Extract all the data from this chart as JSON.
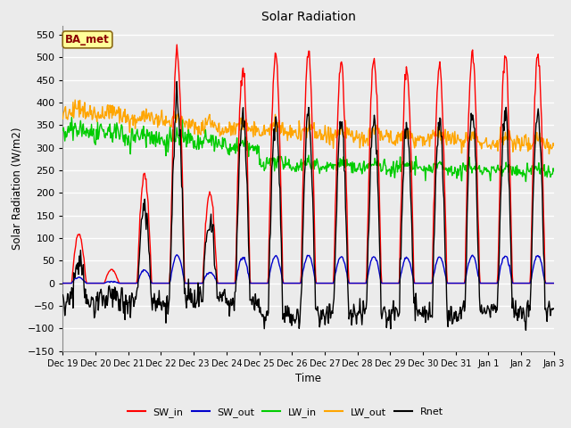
{
  "title": "Solar Radiation",
  "xlabel": "Time",
  "ylabel": "Solar Radiation (W/m2)",
  "ylim": [
    -150,
    570
  ],
  "yticks": [
    -150,
    -100,
    -50,
    0,
    50,
    100,
    150,
    200,
    250,
    300,
    350,
    400,
    450,
    500,
    550
  ],
  "annotation_text": "BA_met",
  "annotation_color": "#8B0000",
  "annotation_bg": "#FFFF99",
  "series_colors": {
    "SW_in": "#FF0000",
    "SW_out": "#0000CC",
    "LW_in": "#00CC00",
    "LW_out": "#FFA500",
    "Rnet": "#000000"
  },
  "line_width": 1.0,
  "bg_color": "#E8E8E8",
  "plot_bg": "#EBEBEB",
  "n_days": 15,
  "tick_labels": [
    "Dec 19",
    "Dec 20",
    "Dec 21",
    "Dec 22",
    "Dec 23",
    "Dec 24",
    "Dec 25",
    "Dec 26",
    "Dec 27",
    "Dec 28",
    "Dec 29",
    "Dec 30",
    "Dec 31",
    "Jan 1",
    "Jan 2",
    "Jan 3"
  ]
}
